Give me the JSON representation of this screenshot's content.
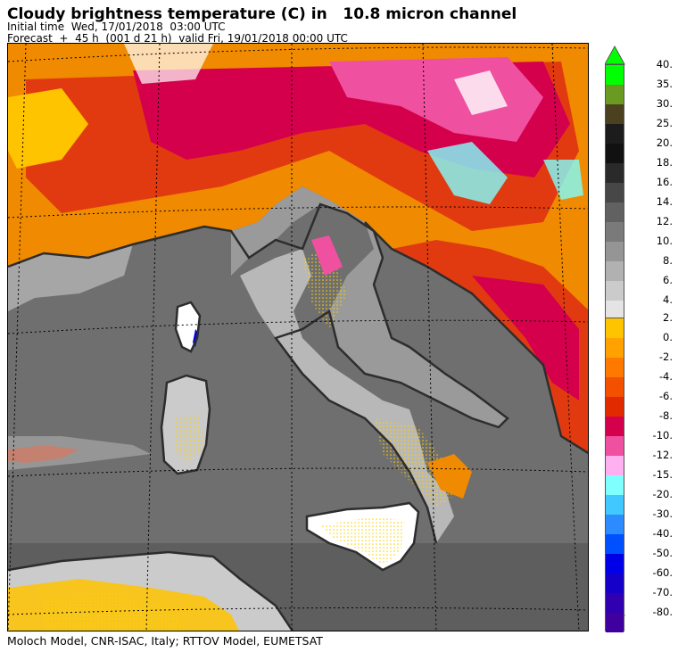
{
  "header": {
    "title": "Cloudy brightness temperature (C) in   10.8 micron channel",
    "line1": "Initial time  Wed, 17/01/2018  03:00 UTC",
    "line2": "Forecast  +  45 h  (001 d 21 h)  valid Fri, 19/01/2018 00:00 UTC"
  },
  "footer": "Moloch Model, CNR-ISAC, Italy; RTTOV Model, EUMETSAT",
  "legend": {
    "upper_labels": [
      "40.",
      "35.",
      "30.",
      "25.",
      "20.",
      "18.",
      "16.",
      "14.",
      "12.",
      "10.",
      "8.",
      "6.",
      "4."
    ],
    "upper_colors": [
      "#00ff00",
      "#6a9a22",
      "#4b4120",
      "#1c1c1c",
      "#111111",
      "#2a2a2a",
      "#474747",
      "#616161",
      "#7a7a7a",
      "#959595",
      "#b1b1b1",
      "#cbcbcb",
      "#e4e4e4"
    ],
    "lower_labels": [
      "2.",
      "0.",
      "-2.",
      "-4.",
      "-6.",
      "-8.",
      "-10.",
      "-12.",
      "-15.",
      "-20.",
      "-30.",
      "-40.",
      "-50.",
      "-60.",
      "-70.",
      "-80."
    ],
    "lower_colors": [
      "#ffc400",
      "#ffa200",
      "#ff7800",
      "#f35000",
      "#e22a00",
      "#d5004b",
      "#f050a0",
      "#ffb0f0",
      "#80ffff",
      "#40c8ff",
      "#2c8cff",
      "#0050ff",
      "#0000e8",
      "#1400c8",
      "#3000b0",
      "#4000a0"
    ]
  }
}
